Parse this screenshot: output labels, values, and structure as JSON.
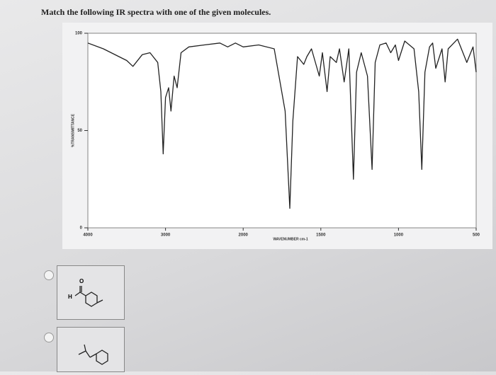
{
  "question": "Match the following IR spectra with one of the given molecules.",
  "chart_data": {
    "type": "line",
    "ylabel": "%TRANSMITTANCE",
    "xlabel": "WAVENUMBER cm-1",
    "x": [
      4000,
      3800,
      3600,
      3500,
      3420,
      3300,
      3200,
      3100,
      3060,
      3030,
      3000,
      2960,
      2930,
      2890,
      2850,
      2800,
      2700,
      2500,
      2300,
      2200,
      2100,
      2000,
      1900,
      1800,
      1730,
      1700,
      1680,
      1650,
      1610,
      1590,
      1560,
      1510,
      1490,
      1460,
      1440,
      1400,
      1380,
      1350,
      1320,
      1290,
      1270,
      1240,
      1200,
      1170,
      1150,
      1120,
      1080,
      1050,
      1020,
      1000,
      960,
      900,
      870,
      850,
      830,
      800,
      780,
      760,
      720,
      700,
      680,
      620,
      560,
      520,
      500
    ],
    "values": [
      95,
      92,
      88,
      86,
      83,
      89,
      90,
      85,
      70,
      38,
      67,
      72,
      60,
      78,
      72,
      90,
      93,
      94,
      95,
      93,
      95,
      93,
      94,
      92,
      60,
      10,
      55,
      88,
      84,
      88,
      92,
      78,
      90,
      70,
      88,
      85,
      92,
      75,
      92,
      25,
      80,
      90,
      78,
      30,
      85,
      94,
      95,
      90,
      94,
      86,
      96,
      92,
      70,
      30,
      80,
      93,
      95,
      82,
      92,
      75,
      92,
      97,
      85,
      93,
      80
    ],
    "color": "#222222",
    "xlim": [
      4000,
      500
    ],
    "xticks": [
      4000,
      3000,
      2000,
      1500,
      1000,
      500
    ],
    "ylim": [
      0,
      100
    ],
    "yticks": [
      0,
      50,
      100
    ]
  },
  "options": [
    {
      "labels": [
        "O",
        "H"
      ]
    },
    {
      "labels": []
    }
  ]
}
